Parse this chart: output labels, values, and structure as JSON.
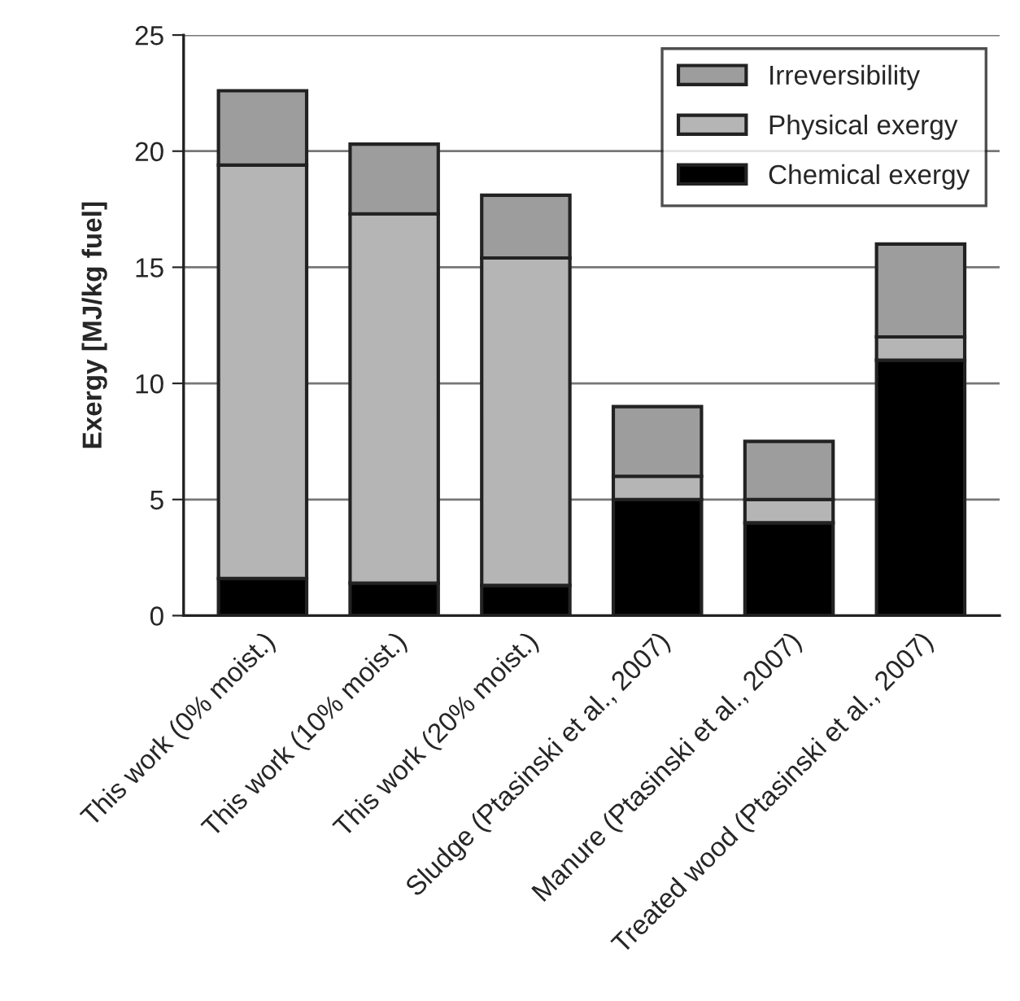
{
  "chart_data": {
    "type": "bar",
    "stacked": true,
    "ylabel": "Exergy [MJ/kg fuel]",
    "categories": [
      "This work (0% moist.)",
      "This work (10% moist.)",
      "This work (20% moist.)",
      "Sludge (Ptasinski et al., 2007)",
      "Manure (Ptasinski et al., 2007)",
      "Treated wood (Ptasinski et al., 2007)"
    ],
    "series": [
      {
        "name": "Chemical exergy",
        "color": "#000000",
        "values": [
          1.6,
          1.4,
          1.3,
          5.0,
          4.0,
          11.0
        ]
      },
      {
        "name": "Physical exergy",
        "color": "#b5b5b5",
        "values": [
          17.8,
          15.9,
          14.1,
          1.0,
          1.0,
          1.0
        ]
      },
      {
        "name": "Irreversibility",
        "color": "#9c9d9c",
        "values": [
          3.2,
          3.0,
          2.7,
          3.0,
          2.5,
          4.0
        ]
      }
    ],
    "ylim": [
      0,
      25
    ],
    "yticks": [
      0,
      5,
      10,
      15,
      20,
      25
    ],
    "grid": "y",
    "legend": "top right"
  }
}
